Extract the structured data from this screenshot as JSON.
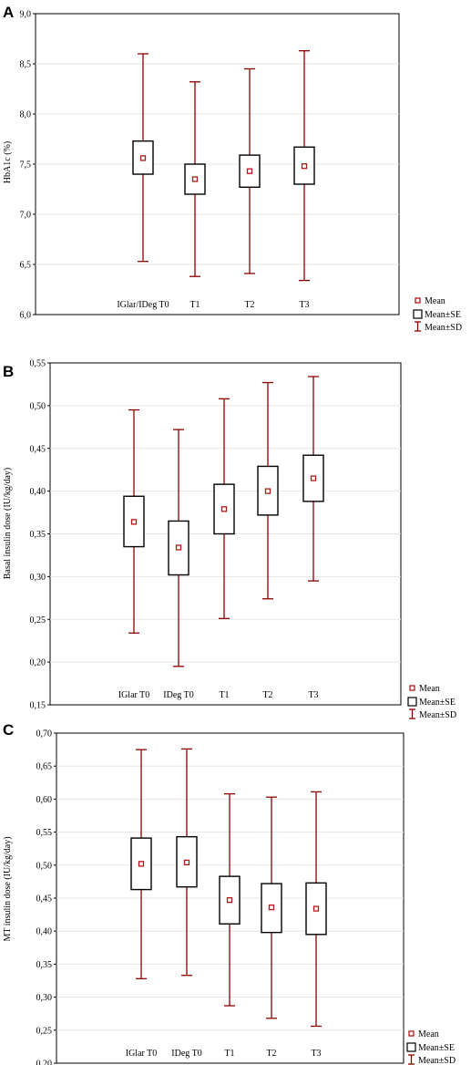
{
  "chart_data": [
    {
      "type": "box",
      "panel_label": "A",
      "ylabel": "HbA1c (%)",
      "ylim": [
        6.0,
        9.0
      ],
      "yticks": [
        "6,0",
        "6,5",
        "7,0",
        "7,5",
        "8,0",
        "8,5",
        "9,0"
      ],
      "ytick_values": [
        6.0,
        6.5,
        7.0,
        7.5,
        8.0,
        8.5,
        9.0
      ],
      "categories": [
        "IGlar/IDeg T0",
        "T1",
        "T2",
        "T3"
      ],
      "mean": [
        7.56,
        7.35,
        7.43,
        7.48
      ],
      "se_low": [
        7.4,
        7.2,
        7.27,
        7.3
      ],
      "se_high": [
        7.73,
        7.5,
        7.59,
        7.67
      ],
      "sd_low": [
        6.53,
        6.38,
        6.41,
        6.34
      ],
      "sd_high": [
        8.6,
        8.32,
        8.45,
        8.63
      ],
      "legend": [
        "Mean",
        "Mean±SE",
        "Mean±SD"
      ]
    },
    {
      "type": "box",
      "panel_label": "B",
      "ylabel": "Basal insulin dose (IU/kg/day)",
      "ylim": [
        0.15,
        0.55
      ],
      "yticks": [
        "0,15",
        "0,20",
        "0,25",
        "0,30",
        "0,35",
        "0,40",
        "0,45",
        "0,50",
        "0,55"
      ],
      "ytick_values": [
        0.15,
        0.2,
        0.25,
        0.3,
        0.35,
        0.4,
        0.45,
        0.5,
        0.55
      ],
      "categories": [
        "IGlar T0",
        "IDeg T0",
        "T1",
        "T2",
        "T3"
      ],
      "mean": [
        0.364,
        0.334,
        0.379,
        0.4,
        0.415
      ],
      "se_low": [
        0.335,
        0.302,
        0.35,
        0.372,
        0.388
      ],
      "se_high": [
        0.394,
        0.365,
        0.408,
        0.429,
        0.442
      ],
      "sd_low": [
        0.234,
        0.195,
        0.251,
        0.274,
        0.295
      ],
      "sd_high": [
        0.495,
        0.472,
        0.508,
        0.527,
        0.534
      ],
      "legend": [
        "Mean",
        "Mean±SE",
        "Mean±SD"
      ]
    },
    {
      "type": "box",
      "panel_label": "C",
      "ylabel": "MT insulin dose (IU/kg/day)",
      "ylim": [
        0.2,
        0.7
      ],
      "yticks": [
        "0,20",
        "0,25",
        "0,30",
        "0,35",
        "0,40",
        "0,45",
        "0,50",
        "0,55",
        "0,60",
        "0,65",
        "0,70"
      ],
      "ytick_values": [
        0.2,
        0.25,
        0.3,
        0.35,
        0.4,
        0.45,
        0.5,
        0.55,
        0.6,
        0.65,
        0.7
      ],
      "categories": [
        "IGlar T0",
        "IDeg T0",
        "T1",
        "T2",
        "T3"
      ],
      "mean": [
        0.502,
        0.504,
        0.447,
        0.436,
        0.434
      ],
      "se_low": [
        0.463,
        0.467,
        0.411,
        0.398,
        0.395
      ],
      "se_high": [
        0.541,
        0.543,
        0.483,
        0.472,
        0.473
      ],
      "sd_low": [
        0.328,
        0.333,
        0.287,
        0.268,
        0.256
      ],
      "sd_high": [
        0.675,
        0.676,
        0.608,
        0.603,
        0.611
      ],
      "legend": [
        "Mean",
        "Mean±SE",
        "Mean±SD"
      ]
    }
  ],
  "colors": {
    "error_bar": "#8b0000",
    "box": "#000000",
    "mean_marker": "#b01818",
    "frame": "#000000"
  }
}
